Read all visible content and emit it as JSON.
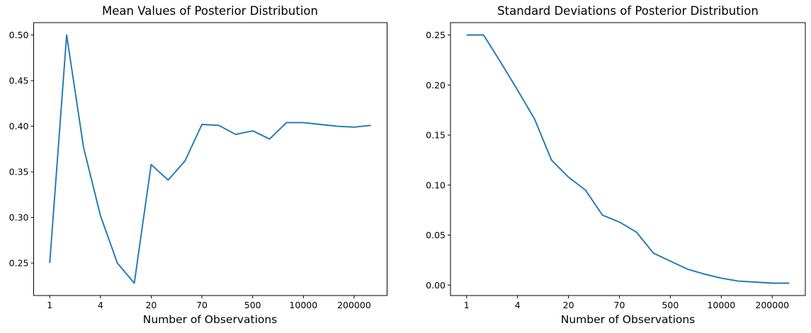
{
  "figure": {
    "background": "#ffffff",
    "text_color": "#000000",
    "spine_color": "#000000",
    "line_color": "#1f77b4"
  },
  "chart_data": [
    {
      "type": "line",
      "title": "Mean Values of Posterior Distribution",
      "xlabel": "Number of Observations",
      "ylabel": "",
      "grid": false,
      "legend": null,
      "line_color": "#1f77b4",
      "x_tick_labels": [
        "1",
        "4",
        "20",
        "70",
        "500",
        "10000",
        "200000"
      ],
      "x_tick_positions": [
        0,
        3,
        6,
        9,
        12,
        15,
        18
      ],
      "y_ticks": [
        0.25,
        0.3,
        0.35,
        0.4,
        0.45,
        0.5
      ],
      "y_tick_labels": [
        "0.25",
        "0.30",
        "0.35",
        "0.40",
        "0.45",
        "0.50"
      ],
      "values": [
        0.25,
        0.5,
        0.377,
        0.302,
        0.25,
        0.228,
        0.358,
        0.341,
        0.362,
        0.402,
        0.401,
        0.391,
        0.395,
        0.386,
        0.404,
        0.404,
        0.402,
        0.4,
        0.399,
        0.401
      ],
      "xlim": [
        -0.95,
        19.95
      ],
      "ylim": [
        0.2144,
        0.5136
      ]
    },
    {
      "type": "line",
      "title": "Standard Deviations of Posterior Distribution",
      "xlabel": "Number of Observations",
      "ylabel": "",
      "grid": false,
      "legend": null,
      "line_color": "#1f77b4",
      "x_tick_labels": [
        "1",
        "4",
        "20",
        "70",
        "500",
        "10000",
        "200000"
      ],
      "x_tick_positions": [
        0,
        3,
        6,
        9,
        12,
        15,
        18
      ],
      "y_ticks": [
        0.0,
        0.05,
        0.1,
        0.15,
        0.2,
        0.25
      ],
      "y_tick_labels": [
        "0.00",
        "0.05",
        "0.10",
        "0.15",
        "0.20",
        "0.25"
      ],
      "values": [
        0.25,
        0.25,
        0.223,
        0.195,
        0.166,
        0.125,
        0.108,
        0.095,
        0.07,
        0.063,
        0.053,
        0.032,
        0.024,
        0.016,
        0.011,
        0.007,
        0.004,
        0.003,
        0.002,
        0.002
      ],
      "xlim": [
        -0.95,
        19.95
      ],
      "ylim": [
        -0.0104,
        0.2624
      ]
    }
  ]
}
